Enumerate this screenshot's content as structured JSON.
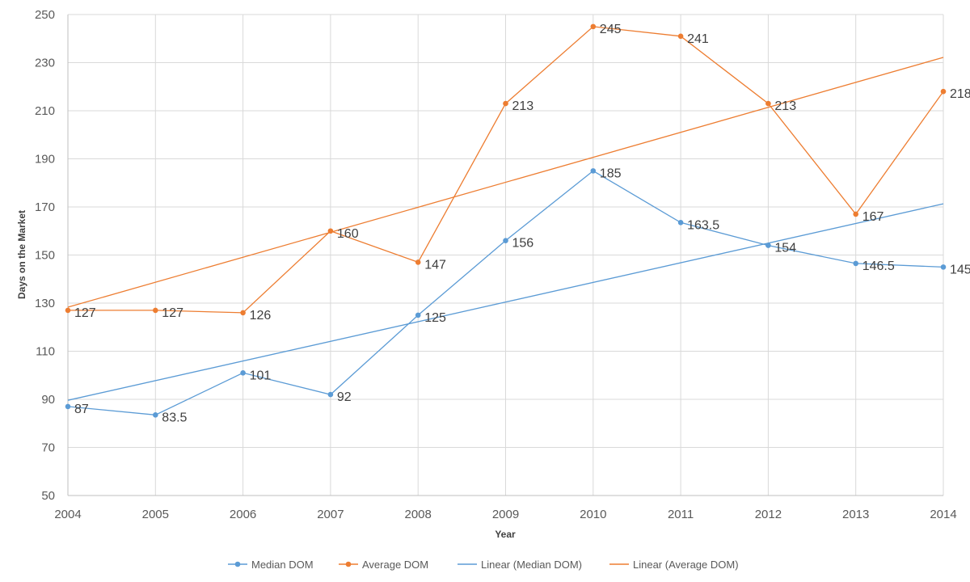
{
  "chart_data": {
    "type": "line",
    "title": "",
    "xlabel": "Year",
    "ylabel": "Days on the Market",
    "x": [
      2004,
      2005,
      2006,
      2007,
      2008,
      2009,
      2010,
      2011,
      2012,
      2013,
      2014
    ],
    "ylim": [
      50,
      250
    ],
    "yticks": [
      50,
      70,
      90,
      110,
      130,
      150,
      170,
      190,
      210,
      230,
      250
    ],
    "grid": true,
    "legend_position": "bottom",
    "series": [
      {
        "name": "Median DOM",
        "color": "#5B9BD5",
        "values": [
          87,
          83.5,
          101,
          92,
          125,
          156,
          185,
          163.5,
          154,
          146.5,
          145
        ],
        "labels": [
          "87",
          "83.5",
          "101",
          "92",
          "125",
          "156",
          "185",
          "163.5",
          "154",
          "146.5",
          "145"
        ]
      },
      {
        "name": "Average DOM",
        "color": "#ED7D31",
        "values": [
          127,
          127,
          126,
          160,
          147,
          213,
          245,
          241,
          213,
          167,
          218
        ],
        "labels": [
          "127",
          "127",
          "126",
          "160",
          "147",
          "213",
          "245",
          "241",
          "213",
          "167",
          "218"
        ]
      }
    ],
    "trendlines": [
      {
        "name": "Linear (Median DOM)",
        "color": "#5B9BD5",
        "start": 89.6,
        "end": 171.3
      },
      {
        "name": "Linear (Average DOM)",
        "color": "#ED7D31",
        "start": 128.3,
        "end": 232.2
      }
    ]
  }
}
